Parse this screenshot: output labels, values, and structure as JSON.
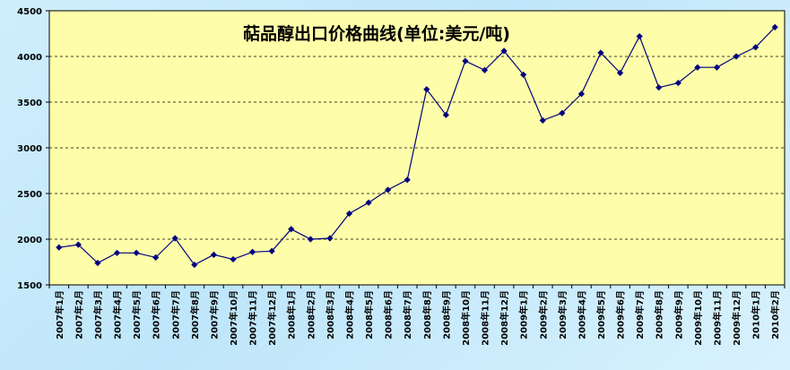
{
  "chart_data": {
    "type": "line",
    "title": "萜品醇出口价格曲线(单位:美元/吨)",
    "xlabel": "",
    "ylabel": "",
    "ylim": [
      1500,
      4500
    ],
    "yticks": [
      1500,
      2000,
      2500,
      3000,
      3500,
      4000,
      4500
    ],
    "grid": "horizontal-dashed",
    "legend": "none",
    "colors": {
      "plot_bg": "#fefeaa",
      "line": "#000080",
      "marker": "#000080",
      "grid": "#000000",
      "page_bg": "#c8ecfb"
    },
    "categories": [
      "2007年1月",
      "2007年2月",
      "2007年3月",
      "2007年4月",
      "2007年5月",
      "2007年6月",
      "2007年7月",
      "2007年8月",
      "2007年9月",
      "2007年10月",
      "2007年11月",
      "2007年12月",
      "2008年1月",
      "2008年2月",
      "2008年3月",
      "2008年4月",
      "2008年5月",
      "2008年6月",
      "2008年7月",
      "2008年8月",
      "2008年9月",
      "2008年10月",
      "2008年11月",
      "2008年12月",
      "2009年1月",
      "2009年2月",
      "2009年3月",
      "2009年4月",
      "2009年5月",
      "2009年6月",
      "2009年7月",
      "2009年8月",
      "2009年9月",
      "2009年10月",
      "2009年11月",
      "2009年12月",
      "2010年1月",
      "2010年2月"
    ],
    "series": [
      {
        "values": [
          1910,
          1940,
          1740,
          1850,
          1850,
          1800,
          2010,
          1720,
          1830,
          1780,
          1860,
          1870,
          2110,
          2000,
          2010,
          2280,
          2400,
          2540,
          2650,
          3640,
          3360,
          3950,
          3850,
          4060,
          3800,
          3300,
          3380,
          3590,
          4040,
          3820,
          4220,
          3660,
          3710,
          3880,
          3880,
          4000,
          4100,
          4320
        ]
      }
    ]
  }
}
